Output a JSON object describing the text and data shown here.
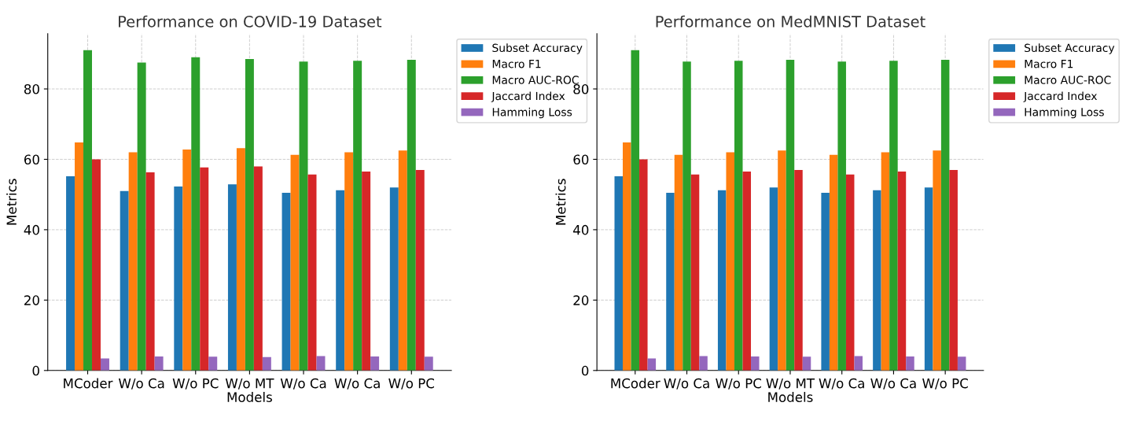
{
  "chart_data": [
    {
      "type": "bar",
      "title": "Performance on COVID-19 Dataset",
      "xlabel": "Models",
      "ylabel": "Metrics",
      "categories": [
        "MCoder",
        "W/o Ca",
        "W/o PC",
        "W/o MT",
        "W/o Ca",
        "W/o Ca",
        "W/o PC"
      ],
      "ylim": [
        0,
        95.7
      ],
      "yticks": [
        0,
        20,
        40,
        60,
        80
      ],
      "grid": true,
      "legend": "top right",
      "series": [
        {
          "name": "Subset Accuracy",
          "color": "#1f77b4",
          "values": [
            55.2,
            51.0,
            52.3,
            52.9,
            50.5,
            51.2,
            52.0
          ]
        },
        {
          "name": "Macro F1",
          "color": "#ff7f0e",
          "values": [
            64.8,
            62.0,
            62.8,
            63.2,
            61.3,
            62.0,
            62.5
          ]
        },
        {
          "name": "Macro AUC-ROC",
          "color": "#2ca02c",
          "values": [
            91.0,
            87.5,
            89.0,
            88.5,
            87.8,
            88.0,
            88.3
          ]
        },
        {
          "name": "Jaccard Index",
          "color": "#d62728",
          "values": [
            60.0,
            56.3,
            57.7,
            58.0,
            55.7,
            56.5,
            57.0
          ]
        },
        {
          "name": "Hamming Loss",
          "color": "#9467bd",
          "values": [
            3.4,
            4.0,
            3.9,
            3.8,
            4.1,
            4.0,
            3.9
          ]
        }
      ]
    },
    {
      "type": "bar",
      "title": "Performance on MedMNIST Dataset",
      "xlabel": "Models",
      "ylabel": "Metrics",
      "categories": [
        "MCoder",
        "W/o Ca",
        "W/o PC",
        "W/o MT",
        "W/o Ca",
        "W/o Ca",
        "W/o PC"
      ],
      "ylim": [
        0,
        95.7
      ],
      "yticks": [
        0,
        20,
        40,
        60,
        80
      ],
      "grid": true,
      "legend": "top right",
      "series": [
        {
          "name": "Subset Accuracy",
          "color": "#1f77b4",
          "values": [
            55.2,
            50.5,
            51.2,
            52.0,
            50.5,
            51.2,
            52.0
          ]
        },
        {
          "name": "Macro F1",
          "color": "#ff7f0e",
          "values": [
            64.8,
            61.3,
            62.0,
            62.5,
            61.3,
            62.0,
            62.5
          ]
        },
        {
          "name": "Macro AUC-ROC",
          "color": "#2ca02c",
          "values": [
            91.0,
            87.8,
            88.0,
            88.3,
            87.8,
            88.0,
            88.3
          ]
        },
        {
          "name": "Jaccard Index",
          "color": "#d62728",
          "values": [
            60.0,
            55.7,
            56.5,
            57.0,
            55.7,
            56.5,
            57.0
          ]
        },
        {
          "name": "Hamming Loss",
          "color": "#9467bd",
          "values": [
            3.4,
            4.1,
            4.0,
            3.9,
            4.1,
            4.0,
            3.9
          ]
        }
      ]
    }
  ]
}
